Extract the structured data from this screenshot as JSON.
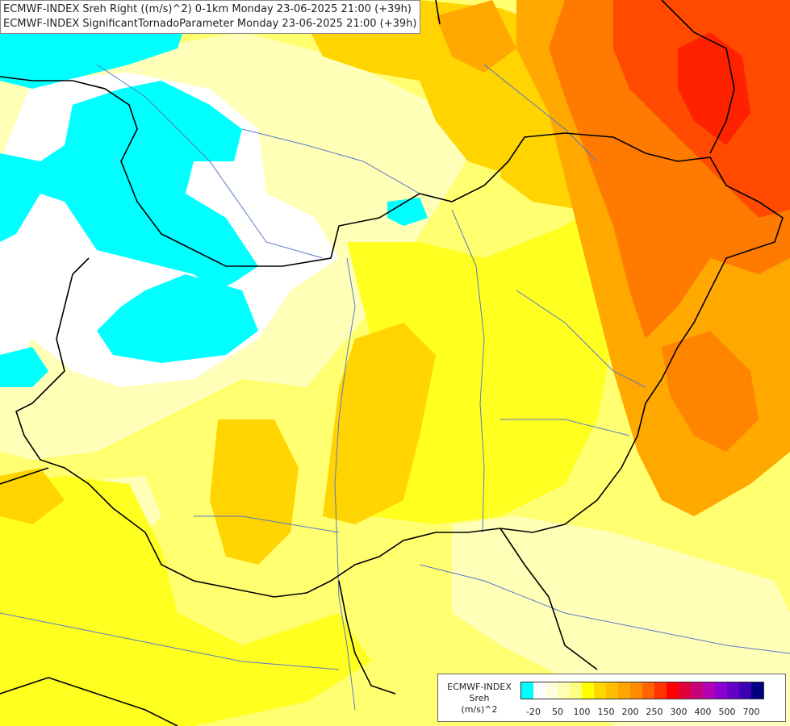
{
  "header": {
    "line1": "ECMWF-INDEX Sreh Right ((m/s)^2) 0-1km Monday 23-06-2025 21:00 (+39h)",
    "line2": "ECMWF-INDEX SignificantTornadoParameter Monday 23-06-2025 21:00 (+39h)"
  },
  "legend": {
    "title_line1": "ECMWF-INDEX",
    "title_line2": "Sreh",
    "title_line3": "(m/s)^2",
    "colors": [
      "#00ffff",
      "#ffffff",
      "#ffffe0",
      "#ffffb3",
      "#ffff80",
      "#ffff00",
      "#ffd700",
      "#ffbf00",
      "#ffa500",
      "#ff8c00",
      "#ff6400",
      "#ff3200",
      "#ff0000",
      "#e0003c",
      "#c80078",
      "#b400b4",
      "#8c00d2",
      "#6400c8",
      "#3c00b4",
      "#000080"
    ],
    "ticks": [
      "-20",
      "50",
      "100",
      "150",
      "200",
      "250",
      "300",
      "400",
      "500",
      "700"
    ]
  },
  "colors": {
    "cyan": "#00ffff",
    "pale_yellow": "#ffffc0",
    "light_yellow": "#ffff80",
    "yellow": "#ffff00",
    "amber": "#ffd000",
    "orange": "#ffa000",
    "dark_orange": "#ff7000",
    "red": "#ff3000",
    "border": "#000000",
    "river": "#5a78c8"
  }
}
